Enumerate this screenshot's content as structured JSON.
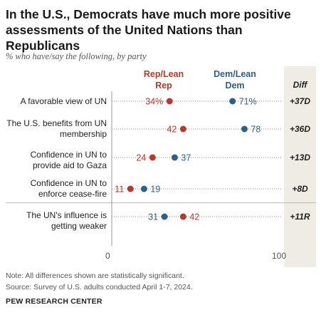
{
  "header": {
    "title": "In the U.S., Democrats have much more positive assessments of the United Nations than Republicans",
    "subtitle": "% who have/say the following, by party"
  },
  "legend": {
    "rep": "Rep/Lean Rep",
    "dem": "Dem/Lean Dem",
    "diff": "Diff"
  },
  "colors": {
    "rep": "#b5382c",
    "dem": "#2f5f86"
  },
  "chart_data": {
    "type": "dot",
    "xlim": [
      0,
      100
    ],
    "x_ticks": [
      "0",
      "100"
    ],
    "series": [
      {
        "name": "Rep/Lean Rep",
        "values": [
          34,
          42,
          24,
          11,
          42
        ]
      },
      {
        "name": "Dem/Lean Dem",
        "values": [
          71,
          78,
          37,
          19,
          31
        ]
      }
    ],
    "rows": [
      {
        "label": "A favorable view of UN",
        "rep": 34,
        "dem": 71,
        "rep_label": "34%",
        "dem_label": "71%",
        "diff": "+37D"
      },
      {
        "label": "The U.S. benefits from UN membership",
        "rep": 42,
        "dem": 78,
        "rep_label": "42",
        "dem_label": "78",
        "diff": "+36D"
      },
      {
        "label": "Confidence in UN to provide aid to Gaza",
        "rep": 24,
        "dem": 37,
        "rep_label": "24",
        "dem_label": "37",
        "diff": "+13D"
      },
      {
        "label": "Confidence in UN to enforce cease-fire",
        "rep": 11,
        "dem": 19,
        "rep_label": "11",
        "dem_label": "19",
        "diff": "+8D"
      },
      {
        "label": "The UN's influence is getting weaker",
        "rep": 42,
        "dem": 31,
        "rep_label": "42",
        "dem_label": "31",
        "diff": "+11R"
      }
    ]
  },
  "footer": {
    "note": "Note: All differences shown are statistically significant.",
    "source": "Source: Survey of U.S. adults conducted April 1-7, 2024.",
    "org": "PEW RESEARCH CENTER"
  }
}
